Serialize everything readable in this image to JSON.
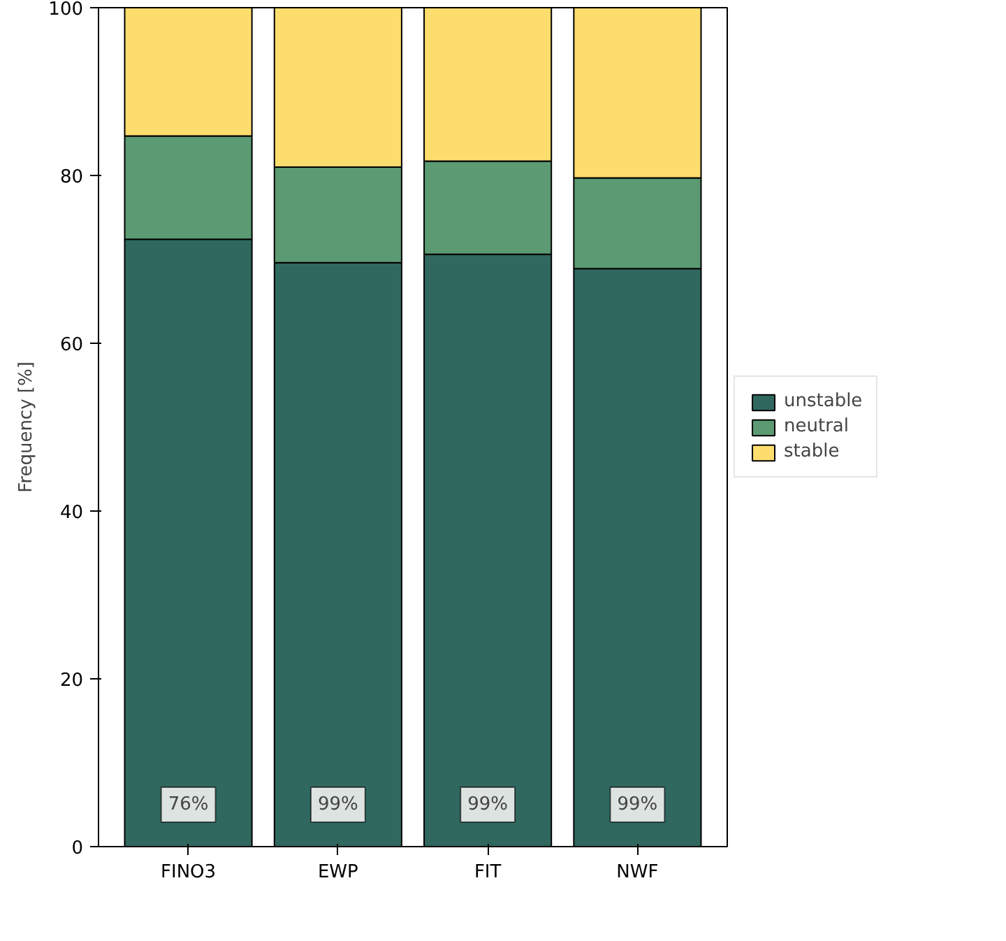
{
  "chart_data": {
    "type": "bar",
    "stacked": true,
    "ylabel": "Frequency [%]",
    "categories": [
      "FINO3",
      "EWP",
      "FIT",
      "NWF"
    ],
    "series": [
      {
        "name": "unstable",
        "color": "#306860",
        "values": [
          72.4,
          69.6,
          70.6,
          68.9
        ]
      },
      {
        "name": "neutral",
        "color": "#5b9a72",
        "values": [
          12.3,
          11.4,
          11.1,
          10.8
        ]
      },
      {
        "name": "stable",
        "color": "#fddd6e",
        "values": [
          15.3,
          19.0,
          18.3,
          20.3
        ]
      }
    ],
    "ylim": [
      0,
      100
    ],
    "yticks": [
      0,
      20,
      40,
      60,
      80,
      100
    ],
    "grid": false,
    "legend": "right",
    "annotations": [
      {
        "text": "76%",
        "x": "FINO3",
        "y": 5
      },
      {
        "text": "99%",
        "x": "EWP",
        "y": 5
      },
      {
        "text": "99%",
        "x": "FIT",
        "y": 5
      },
      {
        "text": "99%",
        "x": "NWF",
        "y": 5
      }
    ]
  }
}
